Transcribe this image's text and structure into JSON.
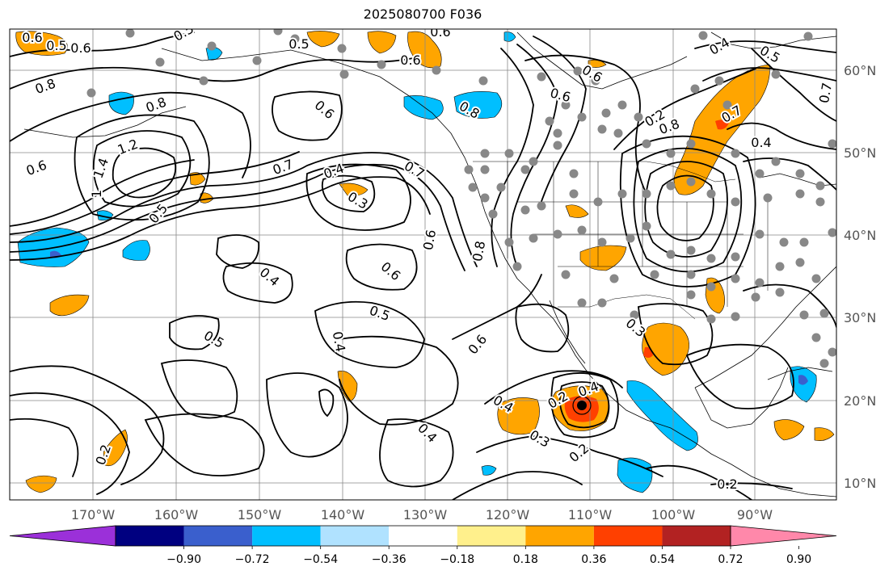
{
  "title": "2025080700 F036",
  "lon_labels": [
    "170°W",
    "160°W",
    "150°W",
    "140°W",
    "130°W",
    "120°W",
    "110°W",
    "100°W",
    "90°W"
  ],
  "lat_labels": [
    "60°N",
    "50°N",
    "40°N",
    "30°N",
    "20°N",
    "10°N"
  ],
  "colorbar": {
    "tick_labels": [
      "−0.90",
      "−0.72",
      "−0.54",
      "−0.36",
      "−0.18",
      "0.18",
      "0.36",
      "0.54",
      "0.72",
      "0.90"
    ],
    "colors": [
      "#9b30d9",
      "#000080",
      "#3a5fcd",
      "#00bfff",
      "#b0e2ff",
      "#ffffff",
      "#fff08c",
      "#ffa500",
      "#ff4000",
      "#b22222",
      "#ff88aa"
    ]
  },
  "contour_labels": [
    "0.6",
    "0.5",
    "0.6",
    "0.5",
    "0.5",
    "0.6",
    "0.8",
    "1.2",
    "1.4",
    "1",
    "0.6",
    "0.5",
    "0.8",
    "0.7",
    "0.4",
    "0.3",
    "0.7",
    "0.6",
    "0.8",
    "0.6",
    "0.5",
    "0.6",
    "0.4",
    "0.5",
    "0.6",
    "0.4",
    "0.4",
    "0.3",
    "0.4",
    "0.2",
    "0.2",
    "0.2",
    "0.3",
    "0.2",
    "0.8",
    "0.8",
    "0.6",
    "0.4",
    "0.5",
    "0.4",
    "0.7",
    "0.6",
    "0.7",
    "0.2",
    "0.6",
    "0.4"
  ]
}
